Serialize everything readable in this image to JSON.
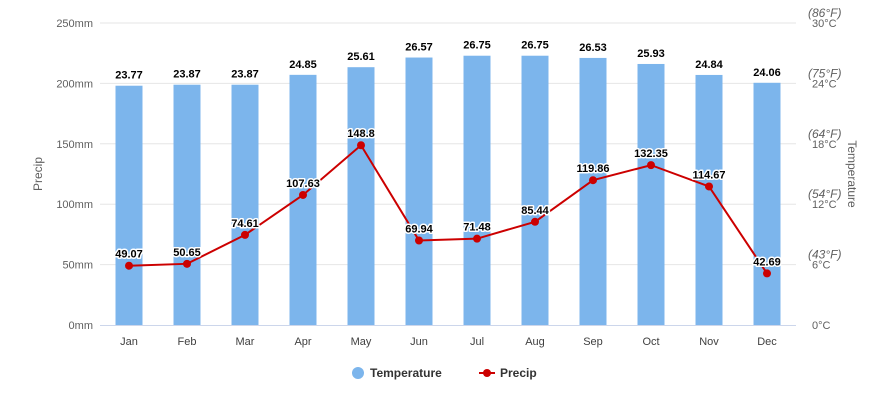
{
  "chart_data": {
    "type": "bar+line",
    "categories": [
      "Jan",
      "Feb",
      "Mar",
      "Apr",
      "May",
      "Jun",
      "Jul",
      "Aug",
      "Sep",
      "Oct",
      "Nov",
      "Dec"
    ],
    "series": [
      {
        "name": "Temperature",
        "type": "bar",
        "axis": "right",
        "color": "#7cb5ec",
        "values": [
          23.77,
          23.87,
          23.87,
          24.85,
          25.61,
          26.57,
          26.75,
          26.75,
          26.53,
          25.93,
          24.84,
          24.06
        ],
        "labels": [
          "23.77",
          "23.87",
          "23.87",
          "24.85",
          "25.61",
          "26.57",
          "26.75",
          "26.75",
          "26.53",
          "25.93",
          "24.84",
          "24.06"
        ]
      },
      {
        "name": "Precip",
        "type": "line",
        "axis": "left",
        "color": "#cc0000",
        "values": [
          49.07,
          50.65,
          74.61,
          107.63,
          148.8,
          69.94,
          71.48,
          85.44,
          119.86,
          132.35,
          114.67,
          42.69
        ],
        "labels": [
          "49.07",
          "50.65",
          "74.61",
          "107.63",
          "148.8",
          "69.94",
          "71.48",
          "85.44",
          "119.86",
          "132.35",
          "114.67",
          "42.69"
        ]
      }
    ],
    "y_left": {
      "label": "Precip",
      "range": [
        0,
        250
      ],
      "ticks": [
        0,
        50,
        100,
        150,
        200,
        250
      ],
      "tick_labels": [
        "0mm",
        "50mm",
        "100mm",
        "150mm",
        "200mm",
        "250mm"
      ]
    },
    "y_right": {
      "label": "Temperature",
      "range": [
        0,
        30
      ],
      "ticks": [
        0,
        6,
        12,
        18,
        24,
        30
      ],
      "tick_labels_c": [
        "0°C",
        "6°C",
        "12°C",
        "18°C",
        "24°C",
        "30°C"
      ],
      "tick_labels_f": [
        "",
        "(43°F)",
        "(54°F)",
        "(64°F)",
        "(75°F)",
        "(86°F)"
      ]
    },
    "grid": true,
    "legend": {
      "position": "bottom-center",
      "items": [
        "Temperature",
        "Precip"
      ]
    }
  }
}
